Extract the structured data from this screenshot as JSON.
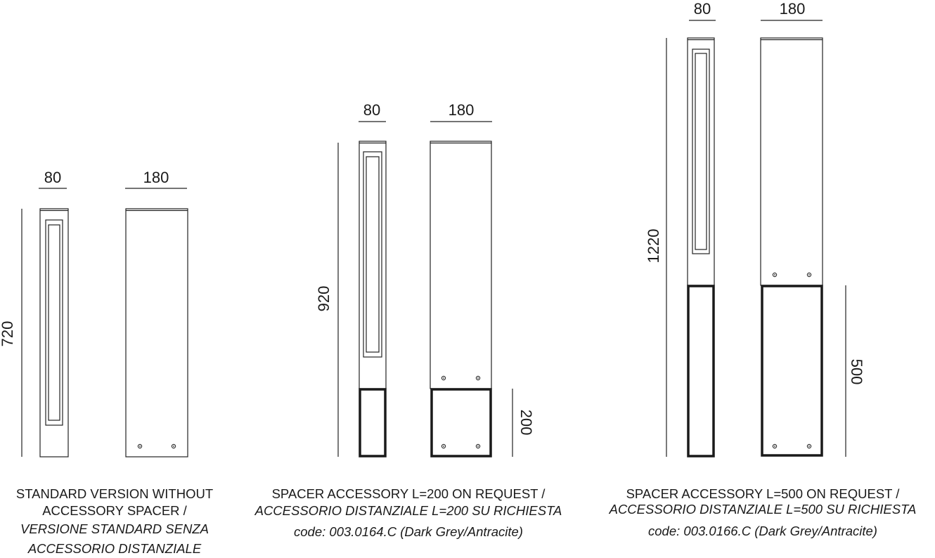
{
  "groups": [
    {
      "side_width": "80",
      "front_width": "180",
      "height": "720",
      "caption": [
        "STANDARD VERSION WITHOUT",
        "ACCESSORY SPACER /",
        "VERSIONE STANDARD SENZA",
        "ACCESSORIO DISTANZIALE"
      ]
    },
    {
      "side_width": "80",
      "front_width": "180",
      "height": "920",
      "spacer_height": "200",
      "caption": [
        "SPACER ACCESSORY L=200 ON REQUEST /",
        "ACCESSORIO DISTANZIALE L=200 SU RICHIESTA",
        "code: 003.0164.C (Dark Grey/Antracite)"
      ]
    },
    {
      "side_width": "80",
      "front_width": "180",
      "height": "1220",
      "spacer_height": "500",
      "caption": [
        "SPACER ACCESSORY L=500 ON REQUEST /",
        "ACCESSORIO DISTANZIALE L=500 SU RICHIESTA",
        "code: 003.0166.C (Dark Grey/Antracite)"
      ]
    }
  ]
}
